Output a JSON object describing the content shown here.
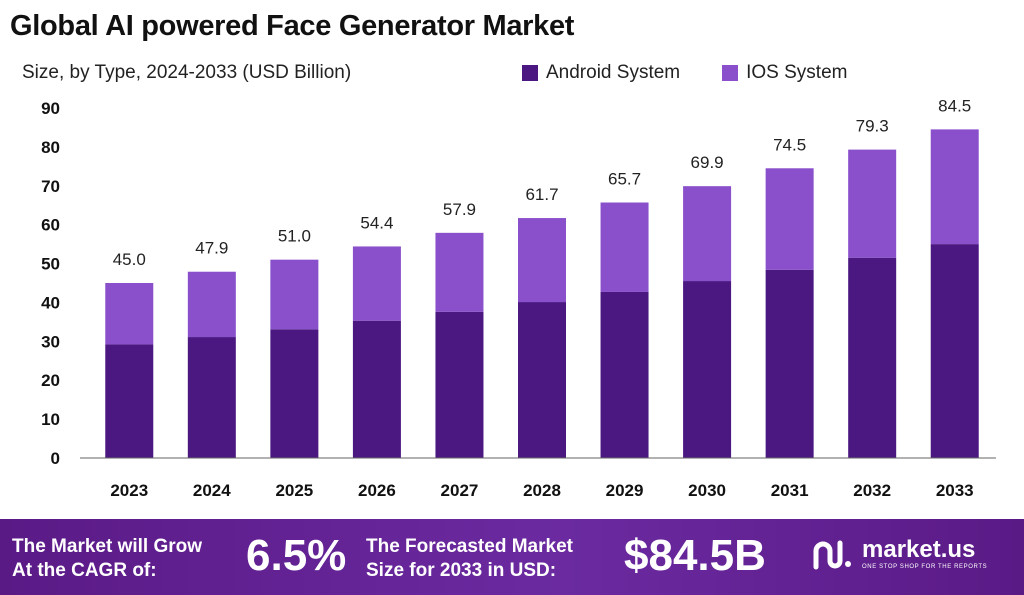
{
  "chart_data": {
    "type": "bar",
    "stacked": true,
    "title": "Global AI powered Face Generator Market",
    "subtitle": "Size, by Type, 2024-2033 (USD Billion)",
    "categories": [
      "2023",
      "2024",
      "2025",
      "2026",
      "2027",
      "2028",
      "2029",
      "2030",
      "2031",
      "2032",
      "2033"
    ],
    "series": [
      {
        "name": "Android System",
        "color": "#4b1882",
        "values": [
          29.2,
          31.1,
          33.1,
          35.3,
          37.6,
          40.1,
          42.7,
          45.5,
          48.4,
          51.5,
          55.0
        ]
      },
      {
        "name": "IOS System",
        "color": "#8a4fcb",
        "values": [
          15.8,
          16.8,
          17.9,
          19.1,
          20.3,
          21.6,
          23.0,
          24.4,
          26.1,
          27.8,
          29.5
        ]
      }
    ],
    "totals": [
      "45.0",
      "47.9",
      "51.0",
      "54.4",
      "57.9",
      "61.7",
      "65.7",
      "69.9",
      "74.5",
      "79.3",
      "84.5"
    ],
    "total_values": [
      45.0,
      47.9,
      51.0,
      54.4,
      57.9,
      61.7,
      65.7,
      69.9,
      74.5,
      79.3,
      84.5
    ],
    "ylim": [
      0,
      90
    ],
    "yticks": [
      "0",
      "10",
      "20",
      "30",
      "40",
      "50",
      "60",
      "70",
      "80",
      "90"
    ],
    "ytick_values": [
      0,
      10,
      20,
      30,
      40,
      50,
      60,
      70,
      80,
      90
    ],
    "grid": false,
    "legend_position": "top-right"
  },
  "footer": {
    "cagr_label_line1": "The Market will Grow",
    "cagr_label_line2": "At the CAGR of:",
    "cagr_value": "6.5%",
    "forecast_label_line1": "The Forecasted Market",
    "forecast_label_line2": "Size for 2033 in USD:",
    "forecast_value": "$84.5B",
    "brand_name": "market.us",
    "brand_tagline": "ONE STOP SHOP FOR THE REPORTS"
  },
  "colors": {
    "footer_bg": "#5a1a86",
    "axis": "#666666"
  }
}
